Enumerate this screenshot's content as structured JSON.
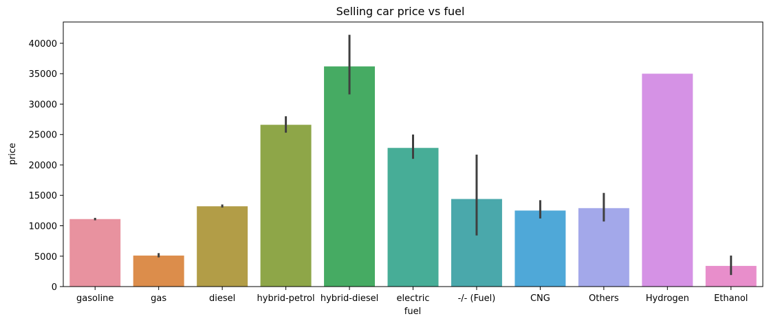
{
  "chart_data": {
    "type": "bar",
    "title": "Selling car price vs fuel",
    "xlabel": "fuel",
    "ylabel": "price",
    "ylim": [
      0,
      43500
    ],
    "yticks": [
      0,
      5000,
      10000,
      15000,
      20000,
      25000,
      30000,
      35000,
      40000
    ],
    "ytick_labels": [
      "0",
      "5000",
      "10000",
      "15000",
      "20000",
      "25000",
      "30000",
      "35000",
      "40000"
    ],
    "grid": false,
    "categories": [
      "gasoline",
      "gas",
      "diesel",
      "hybrid-petrol",
      "hybrid-diesel",
      "electric",
      "-/- (Fuel)",
      "CNG",
      "Others",
      "Hydrogen",
      "Ethanol"
    ],
    "values": [
      11100,
      5100,
      13200,
      26600,
      36200,
      22800,
      14400,
      12500,
      12900,
      35000,
      3400
    ],
    "error_low": [
      10900,
      4800,
      13000,
      25300,
      31600,
      21000,
      8400,
      11200,
      10700,
      35000,
      1900
    ],
    "error_high": [
      11300,
      5500,
      13500,
      28000,
      41400,
      25000,
      21700,
      14200,
      15400,
      35000,
      5100
    ],
    "colors": [
      "#e8929f",
      "#dc8d4b",
      "#b29d47",
      "#8ea648",
      "#46ab63",
      "#47ad97",
      "#4aa8ab",
      "#4fa8d8",
      "#a3a8ea",
      "#d592e5",
      "#e88ecb"
    ]
  }
}
